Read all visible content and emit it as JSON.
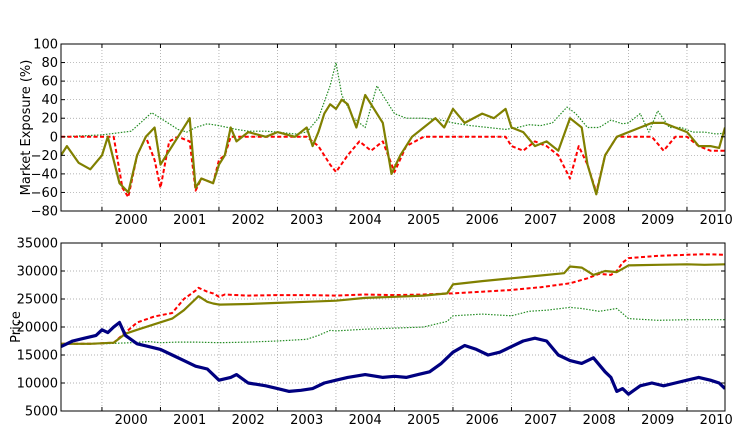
{
  "chart_data": [
    {
      "type": "line",
      "ylabel": "Market Exposure (%)",
      "ylim": [
        -80,
        100
      ],
      "yticks": [
        -80,
        -60,
        -40,
        -20,
        0,
        20,
        40,
        60,
        80,
        100
      ],
      "xlim": [
        1999.3,
        2010.65
      ],
      "xticks": [
        2000,
        2001,
        2002,
        2003,
        2004,
        2005,
        2006,
        2007,
        2008,
        2009,
        2010
      ],
      "grid": true,
      "series": [
        {
          "color": "#228b22",
          "style": "dotted",
          "x": [
            1999.3,
            2000.0,
            2000.5,
            2000.85,
            2001.0,
            2001.3,
            2001.45,
            2001.6,
            2001.8,
            2002.0,
            2002.3,
            2002.5,
            2002.8,
            2003.0,
            2003.3,
            2003.5,
            2003.7,
            2003.9,
            2004.0,
            2004.1,
            2004.3,
            2004.5,
            2004.7,
            2004.9,
            2005.0,
            2005.2,
            2005.5,
            2005.8,
            2006.0,
            2006.3,
            2006.6,
            2006.9,
            2007.1,
            2007.3,
            2007.5,
            2007.7,
            2007.95,
            2008.1,
            2008.3,
            2008.5,
            2008.7,
            2008.9,
            2009.0,
            2009.2,
            2009.35,
            2009.5,
            2009.7,
            2009.9,
            2010.1,
            2010.3,
            2010.5,
            2010.65
          ],
          "values": [
            0,
            2,
            6,
            26,
            20,
            8,
            5,
            10,
            14,
            12,
            8,
            6,
            6,
            5,
            3,
            5,
            20,
            55,
            80,
            45,
            20,
            10,
            55,
            35,
            25,
            20,
            20,
            18,
            15,
            12,
            10,
            8,
            10,
            13,
            12,
            15,
            32,
            25,
            10,
            10,
            18,
            14,
            15,
            25,
            5,
            28,
            10,
            10,
            5,
            5,
            3,
            4
          ]
        },
        {
          "color": "#ff0000",
          "style": "dashed",
          "x": [
            1999.3,
            1999.7,
            2000.0,
            2000.2,
            2000.35,
            2000.45,
            2000.6,
            2000.75,
            2000.9,
            2001.0,
            2001.15,
            2001.3,
            2001.5,
            2001.6,
            2001.7,
            2001.9,
            2002.0,
            2002.1,
            2002.2,
            2002.3,
            2002.6,
            2003.0,
            2003.3,
            2003.5,
            2003.7,
            2003.9,
            2004.0,
            2004.2,
            2004.4,
            2004.6,
            2004.8,
            2005.0,
            2005.2,
            2005.5,
            2005.8,
            2006.0,
            2006.3,
            2006.6,
            2006.9,
            2007.0,
            2007.2,
            2007.4,
            2007.6,
            2007.8,
            2008.0,
            2008.15,
            2008.3,
            2008.45,
            2008.6,
            2008.8,
            2009.0,
            2009.2,
            2009.4,
            2009.6,
            2009.8,
            2010.0,
            2010.2,
            2010.4,
            2010.65
          ],
          "values": [
            0,
            0,
            0,
            0,
            -55,
            -65,
            -20,
            0,
            -25,
            -55,
            -5,
            0,
            -5,
            -58,
            -45,
            -50,
            -25,
            -20,
            0,
            0,
            0,
            0,
            0,
            0,
            -10,
            -30,
            -38,
            -20,
            -5,
            -15,
            -5,
            -38,
            -10,
            0,
            0,
            0,
            0,
            0,
            0,
            -10,
            -15,
            -5,
            -10,
            -20,
            -45,
            -10,
            -30,
            -60,
            -20,
            0,
            0,
            0,
            0,
            -15,
            0,
            0,
            -10,
            -15,
            -15
          ]
        },
        {
          "color": "#808000",
          "style": "solid",
          "x": [
            1999.3,
            1999.4,
            1999.6,
            1999.8,
            2000.0,
            2000.1,
            2000.3,
            2000.45,
            2000.6,
            2000.75,
            2000.9,
            2001.0,
            2001.15,
            2001.3,
            2001.5,
            2001.6,
            2001.7,
            2001.9,
            2002.0,
            2002.1,
            2002.2,
            2002.3,
            2002.5,
            2002.8,
            2003.0,
            2003.3,
            2003.5,
            2003.6,
            2003.7,
            2003.8,
            2003.9,
            2004.0,
            2004.1,
            2004.2,
            2004.35,
            2004.5,
            2004.6,
            2004.7,
            2004.8,
            2004.95,
            2005.1,
            2005.3,
            2005.5,
            2005.7,
            2005.85,
            2006.0,
            2006.2,
            2006.5,
            2006.7,
            2006.9,
            2007.0,
            2007.2,
            2007.4,
            2007.6,
            2007.8,
            2008.0,
            2008.2,
            2008.3,
            2008.45,
            2008.6,
            2008.8,
            2009.0,
            2009.2,
            2009.4,
            2009.6,
            2009.8,
            2010.0,
            2010.2,
            2010.4,
            2010.55,
            2010.65
          ],
          "values": [
            -20,
            -10,
            -28,
            -35,
            -20,
            0,
            -50,
            -60,
            -20,
            0,
            10,
            -30,
            -15,
            0,
            20,
            -55,
            -45,
            -50,
            -30,
            -20,
            10,
            -5,
            5,
            0,
            5,
            0,
            10,
            -10,
            5,
            25,
            35,
            30,
            40,
            35,
            10,
            45,
            35,
            25,
            15,
            -40,
            -20,
            0,
            10,
            20,
            10,
            30,
            15,
            25,
            20,
            30,
            10,
            5,
            -10,
            -5,
            -15,
            20,
            10,
            -30,
            -62,
            -20,
            0,
            5,
            10,
            15,
            15,
            10,
            5,
            -10,
            -10,
            -12,
            10
          ]
        }
      ]
    },
    {
      "type": "line",
      "ylabel": "Price",
      "ylim": [
        5000,
        35000
      ],
      "yticks": [
        5000,
        10000,
        15000,
        20000,
        25000,
        30000,
        35000
      ],
      "xlim": [
        1999.3,
        2010.65
      ],
      "xticks": [
        2000,
        2001,
        2002,
        2003,
        2004,
        2005,
        2006,
        2007,
        2008,
        2009,
        2010
      ],
      "grid": true,
      "series": [
        {
          "color": "#228b22",
          "style": "dotted",
          "x": [
            1999.3,
            2000.0,
            2000.5,
            2000.8,
            2001.0,
            2001.3,
            2001.6,
            2002.0,
            2002.5,
            2003.0,
            2003.5,
            2003.7,
            2003.9,
            2004.0,
            2004.5,
            2005.0,
            2005.5,
            2005.9,
            2006.0,
            2006.5,
            2007.0,
            2007.3,
            2007.6,
            2008.0,
            2008.2,
            2008.5,
            2008.8,
            2009.0,
            2009.5,
            2010.0,
            2010.65
          ],
          "values": [
            17000,
            17000,
            17200,
            17400,
            17200,
            17300,
            17300,
            17200,
            17300,
            17500,
            17800,
            18500,
            19400,
            19300,
            19600,
            19800,
            20000,
            21000,
            22000,
            22300,
            22000,
            22800,
            23000,
            23500,
            23300,
            22800,
            23300,
            21500,
            21200,
            21300,
            21300
          ]
        },
        {
          "color": "#ff0000",
          "style": "dashed",
          "x": [
            1999.3,
            1999.8,
            2000.2,
            2000.4,
            2000.6,
            2000.9,
            2001.2,
            2001.4,
            2001.6,
            2001.65,
            2001.8,
            2001.9,
            2002.0,
            2002.1,
            2002.5,
            2003.0,
            2003.5,
            2004.0,
            2004.5,
            2005.0,
            2005.5,
            2006.0,
            2006.5,
            2007.0,
            2007.5,
            2008.0,
            2008.3,
            2008.5,
            2008.7,
            2008.8,
            2008.9,
            2009.0,
            2009.5,
            2010.0,
            2010.3,
            2010.65
          ],
          "values": [
            17000,
            17000,
            17200,
            19000,
            20800,
            21900,
            22500,
            25000,
            26500,
            27000,
            26300,
            26000,
            25400,
            25800,
            25600,
            25700,
            25700,
            25600,
            25800,
            25700,
            25800,
            26000,
            26300,
            26600,
            27100,
            27800,
            28700,
            29500,
            29300,
            30000,
            31500,
            32300,
            32700,
            32900,
            33000,
            32900
          ]
        },
        {
          "color": "#808000",
          "style": "solid",
          "x": [
            1999.3,
            1999.8,
            2000.2,
            2000.4,
            2000.6,
            2000.9,
            2001.2,
            2001.4,
            2001.6,
            2001.65,
            2001.8,
            2001.9,
            2002.0,
            2002.5,
            2003.0,
            2003.5,
            2004.0,
            2004.5,
            2005.0,
            2005.5,
            2005.9,
            2006.0,
            2006.5,
            2007.0,
            2007.5,
            2007.9,
            2008.0,
            2008.2,
            2008.4,
            2008.6,
            2008.8,
            2009.0,
            2009.5,
            2010.0,
            2010.3,
            2010.65
          ],
          "values": [
            17000,
            17000,
            17200,
            18800,
            19500,
            20500,
            21500,
            23000,
            25000,
            25500,
            24500,
            24200,
            24000,
            24100,
            24300,
            24500,
            24700,
            25200,
            25400,
            25600,
            26000,
            27600,
            28200,
            28700,
            29200,
            29600,
            30800,
            30600,
            29300,
            30000,
            29800,
            31000,
            31100,
            31200,
            31100,
            31200
          ]
        },
        {
          "color": "#000080",
          "style": "solid-thick",
          "x": [
            1999.3,
            1999.5,
            1999.7,
            1999.9,
            2000.0,
            2000.1,
            2000.2,
            2000.3,
            2000.4,
            2000.6,
            2000.8,
            2001.0,
            2001.2,
            2001.4,
            2001.6,
            2001.8,
            2002.0,
            2002.2,
            2002.3,
            2002.5,
            2002.8,
            2003.0,
            2003.2,
            2003.4,
            2003.6,
            2003.8,
            2004.0,
            2004.2,
            2004.5,
            2004.8,
            2005.0,
            2005.2,
            2005.4,
            2005.6,
            2005.8,
            2006.0,
            2006.2,
            2006.4,
            2006.6,
            2006.8,
            2007.0,
            2007.2,
            2007.4,
            2007.6,
            2007.8,
            2008.0,
            2008.2,
            2008.4,
            2008.6,
            2008.7,
            2008.8,
            2008.9,
            2009.0,
            2009.2,
            2009.4,
            2009.6,
            2009.8,
            2010.0,
            2010.2,
            2010.4,
            2010.55,
            2010.65
          ],
          "values": [
            16500,
            17500,
            18000,
            18500,
            19500,
            19000,
            20000,
            20800,
            18500,
            17000,
            16500,
            16000,
            15000,
            14000,
            13000,
            12500,
            10500,
            11000,
            11500,
            10000,
            9500,
            9000,
            8500,
            8700,
            9000,
            10000,
            10500,
            11000,
            11500,
            11000,
            11200,
            11000,
            11500,
            12000,
            13500,
            15500,
            16700,
            16000,
            15000,
            15500,
            16500,
            17500,
            18000,
            17500,
            15000,
            14000,
            13500,
            14500,
            12000,
            11000,
            8500,
            9000,
            8000,
            9500,
            10000,
            9500,
            10000,
            10500,
            11000,
            10500,
            10000,
            9000
          ]
        }
      ]
    }
  ]
}
